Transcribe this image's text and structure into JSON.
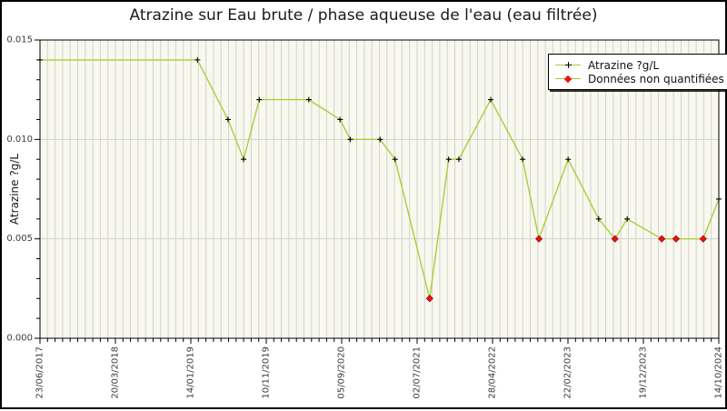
{
  "colors": {
    "series_line": "#a9ce3b",
    "quantified_marker": "#000000",
    "non_quantified_marker": "#ee1111",
    "non_quantified_edge": "#990000",
    "grid": "#d2d2d2",
    "plot_background": "#f8f8ee",
    "frame": "#000000",
    "tick_text": "#3c3c3c"
  },
  "legend": {
    "items": [
      {
        "label": "Atrazine ?g/L",
        "marker": "plus"
      },
      {
        "label": "Données non quantifiées",
        "marker": "diamond"
      }
    ]
  },
  "chart_data": {
    "type": "line",
    "title": "Atrazine sur Eau brute / phase aqueuse de l'eau (eau filtrée)",
    "xlabel": "",
    "ylabel": "Atrazine ?g/L",
    "ylim": [
      0,
      0.015
    ],
    "y_major_ticks": [
      0,
      0.005,
      0.01,
      0.015
    ],
    "y_tick_labels": [
      "0.000",
      "0.005",
      "0.010",
      "0.015"
    ],
    "y_minor_step": 0.001,
    "x_tick_labels": [
      "23/06/2017",
      "20/03/2018",
      "14/01/2019",
      "10/11/2019",
      "05/09/2020",
      "02/07/2021",
      "28/04/2022",
      "22/02/2023",
      "19/12/2023",
      "14/10/2024"
    ],
    "x_minor_divisions_per_major": 10,
    "grid": "vertical minor gridlines + horizontal major gridlines",
    "legend_position": "top-right",
    "points": [
      {
        "x_frac": 0.0,
        "approx_date": "23/06/2017",
        "value": 0.014,
        "quantified": true
      },
      {
        "x_frac": 0.232,
        "approx_date": "02/2019",
        "value": 0.014,
        "quantified": true
      },
      {
        "x_frac": 0.277,
        "approx_date": "06/2019",
        "value": 0.011,
        "quantified": true
      },
      {
        "x_frac": 0.3,
        "approx_date": "08/2019",
        "value": 0.009,
        "quantified": true
      },
      {
        "x_frac": 0.323,
        "approx_date": "10/2019",
        "value": 0.012,
        "quantified": true
      },
      {
        "x_frac": 0.396,
        "approx_date": "04/2020",
        "value": 0.012,
        "quantified": true
      },
      {
        "x_frac": 0.442,
        "approx_date": "08/2020",
        "value": 0.011,
        "quantified": true
      },
      {
        "x_frac": 0.457,
        "approx_date": "10/2020",
        "value": 0.01,
        "quantified": true
      },
      {
        "x_frac": 0.501,
        "approx_date": "02/2021",
        "value": 0.01,
        "quantified": true
      },
      {
        "x_frac": 0.523,
        "approx_date": "04/2021",
        "value": 0.009,
        "quantified": true
      },
      {
        "x_frac": 0.574,
        "approx_date": "08/2021",
        "value": 0.002,
        "quantified": false
      },
      {
        "x_frac": 0.602,
        "approx_date": "11/2021",
        "value": 0.009,
        "quantified": true
      },
      {
        "x_frac": 0.617,
        "approx_date": "12/2021",
        "value": 0.009,
        "quantified": true
      },
      {
        "x_frac": 0.664,
        "approx_date": "04/2022",
        "value": 0.012,
        "quantified": true
      },
      {
        "x_frac": 0.711,
        "approx_date": "08/2022",
        "value": 0.009,
        "quantified": true
      },
      {
        "x_frac": 0.735,
        "approx_date": "10/2022",
        "value": 0.005,
        "quantified": false
      },
      {
        "x_frac": 0.778,
        "approx_date": "22/02/2023",
        "value": 0.009,
        "quantified": true
      },
      {
        "x_frac": 0.823,
        "approx_date": "06/2023",
        "value": 0.006,
        "quantified": true
      },
      {
        "x_frac": 0.847,
        "approx_date": "08/2023",
        "value": 0.005,
        "quantified": false
      },
      {
        "x_frac": 0.865,
        "approx_date": "10/2023",
        "value": 0.006,
        "quantified": true
      },
      {
        "x_frac": 0.916,
        "approx_date": "03/2024",
        "value": 0.005,
        "quantified": false
      },
      {
        "x_frac": 0.937,
        "approx_date": "04/2024",
        "value": 0.005,
        "quantified": false
      },
      {
        "x_frac": 0.977,
        "approx_date": "08/2024",
        "value": 0.005,
        "quantified": false
      },
      {
        "x_frac": 1.0,
        "approx_date": "14/10/2024",
        "value": 0.007,
        "quantified": true
      }
    ]
  }
}
